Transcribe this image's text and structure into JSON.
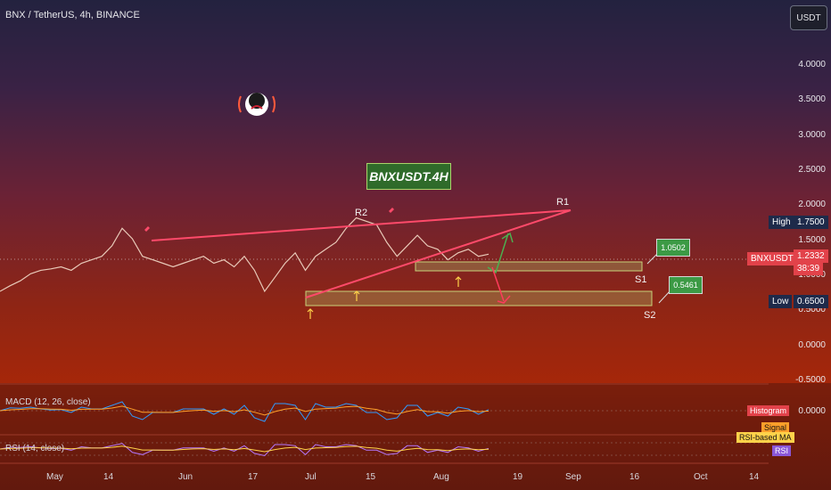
{
  "header": {
    "symbol_line": "BNX / TetherUS, 4h, BINANCE",
    "currency_button": "USDT"
  },
  "chart_data": {
    "type": "line",
    "title": "BNXUSDT.4H",
    "y_ticks": [
      "4.0000",
      "3.5000",
      "3.0000",
      "2.5000",
      "2.0000",
      "1.5000",
      "1.0000",
      "0.5000",
      "0.0000",
      "-0.5000"
    ],
    "x_ticks": [
      "May",
      "14",
      "Jun",
      "17",
      "Jul",
      "15",
      "Aug",
      "19",
      "Sep",
      "16",
      "Oct",
      "14"
    ],
    "ylim": [
      -0.5,
      4.3
    ],
    "price_tags": {
      "high_label": "High",
      "high_value": "1.7500",
      "current_label": "BNXUSDT",
      "current_value": "1.2332",
      "countdown": "38:39",
      "low_label": "Low",
      "low_value": "0.6500"
    },
    "annotations": {
      "r1": "R1",
      "r2": "R2",
      "s1": "S1",
      "s2": "S2",
      "s1_value": "1.0502",
      "s2_value": "0.5461"
    },
    "price_series_approx": [
      0.7,
      0.78,
      0.85,
      0.95,
      1.0,
      1.02,
      1.05,
      1.0,
      1.1,
      1.15,
      1.2,
      1.35,
      1.6,
      1.45,
      1.2,
      1.15,
      1.1,
      1.05,
      1.1,
      1.15,
      1.2,
      1.1,
      1.15,
      1.05,
      1.2,
      1.0,
      0.7,
      0.9,
      1.1,
      1.25,
      1.0,
      1.2,
      1.3,
      1.4,
      1.6,
      1.75,
      1.7,
      1.65,
      1.4,
      1.2,
      1.35,
      1.5,
      1.35,
      1.3,
      1.15,
      1.25,
      1.3,
      1.2,
      1.23
    ]
  },
  "indicators": {
    "macd_label": "MACD (12, 26, close)",
    "macd_value": "0.0000",
    "histogram_chip": "Histogram",
    "signal_chip": "Signal",
    "rsi_label": "RSI (14, close)",
    "rsi_ma_chip": "RSI-based MA",
    "rsi_chip": "RSI"
  },
  "colors": {
    "support_box": "#c8d27a",
    "trendline": "#ff4a6a",
    "candles": "#e8c9b8",
    "green_arrow": "#4caf50",
    "red_arrow": "#ff3b5c"
  }
}
